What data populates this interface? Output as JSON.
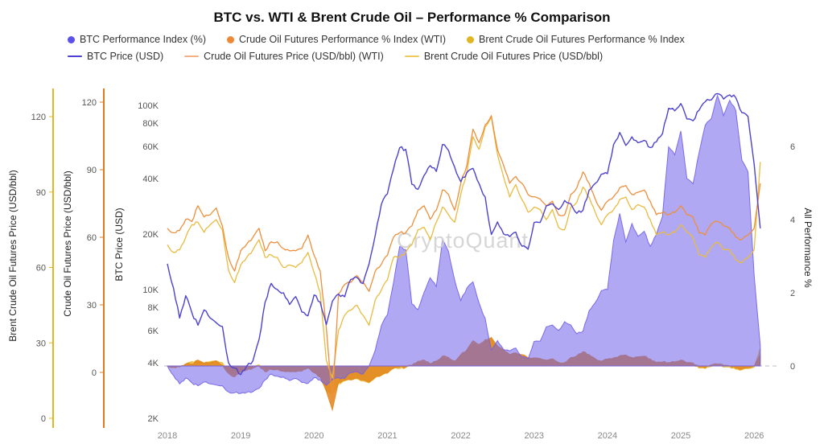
{
  "chart": {
    "title": "BTC vs. WTI & Brent Crude Oil – Performance % Comparison",
    "watermark": "CryptoQuant"
  },
  "legend": [
    {
      "label": "BTC Performance Index (%)",
      "marker": "dot",
      "color": "#5b51e8"
    },
    {
      "label": "Crude Oil Futures Performance % Index (WTI)",
      "marker": "dot",
      "color": "#ed8936"
    },
    {
      "label": "Brent Crude Oil Futures Performance % Index",
      "marker": "dot",
      "color": "#e0b625"
    },
    {
      "label": "BTC Price (USD)",
      "marker": "line",
      "color": "#4c42cf"
    },
    {
      "label": "Crude Oil Futures Price (USD/bbl) (WTI)",
      "marker": "line",
      "color": "#f5b183"
    },
    {
      "label": "Brent Crude Oil Futures Price (USD/bbl)",
      "marker": "line",
      "color": "#eec95c"
    }
  ],
  "axes": {
    "left_brent": {
      "title": "Brent Crude Oil Futures Price (USD/bbl)",
      "tick_values": [
        120,
        90,
        60,
        30,
        0
      ],
      "color": "#e6b422"
    },
    "left_wti": {
      "title": "Crude Oil Futures Price (USD/bbl)",
      "tick_values": [
        120,
        90,
        60,
        30,
        0
      ],
      "color": "#e07b1f"
    },
    "left_btc": {
      "title": "BTC Price (USD)",
      "tick_values": [
        100000,
        80000,
        60000,
        40000,
        20000,
        10000,
        8000,
        6000,
        4000,
        2000
      ],
      "tick_labels": [
        "100K",
        "80K",
        "60K",
        "40K",
        "20K",
        "10K",
        "8K",
        "6K",
        "4K",
        "2K"
      ]
    },
    "right_perf": {
      "title": "All Performance %",
      "tick_values": [
        6,
        4,
        2,
        0
      ]
    },
    "x_axis": {
      "tick_values": [
        2018,
        2019,
        2020,
        2021,
        2022,
        2023,
        2024,
        2025,
        2026
      ]
    }
  },
  "chart_data": {
    "type": "line",
    "title": "BTC vs. WTI & Brent Crude Oil – Performance % Comparison",
    "x_unit": "year (monthly samples, Jan 2018 – Feb 2026)",
    "x_start": 2018.0,
    "x_step_years": 0.083333,
    "grid": false,
    "legend_position": "top",
    "axis_ranges": {
      "btc_log": {
        "min": 2000,
        "max": 100000,
        "scale": "log",
        "unit": "USD"
      },
      "brent": {
        "min": 0,
        "max": 120,
        "scale": "linear",
        "unit": "USD/bbl"
      },
      "wti": {
        "min": -20,
        "max": 140,
        "scale": "linear",
        "unit": "USD/bbl"
      },
      "perf": {
        "min": -1.5,
        "max": 7.5,
        "scale": "linear",
        "unit": "%index"
      }
    },
    "series": [
      {
        "id": "btc-price-line",
        "name": "BTC Price (USD)",
        "axis": "btc_log",
        "kind": "line",
        "color": "#4c42cf",
        "values": [
          13800,
          10200,
          7000,
          9250,
          7500,
          6400,
          7750,
          7000,
          6600,
          6300,
          4000,
          3750,
          3450,
          3850,
          4100,
          5350,
          8550,
          10800,
          10000,
          9600,
          8300,
          9150,
          7550,
          7200,
          9350,
          8550,
          6450,
          8650,
          9450,
          9140,
          11350,
          11650,
          10780,
          13800,
          19700,
          29000,
          33100,
          45100,
          58800,
          57750,
          37300,
          35000,
          41600,
          47100,
          43800,
          61300,
          57000,
          46200,
          38500,
          43200,
          45500,
          37600,
          31800,
          19900,
          23300,
          20050,
          19400,
          20500,
          17200,
          16550,
          23100,
          23150,
          28500,
          29250,
          27200,
          30480,
          29230,
          25930,
          26960,
          34650,
          37700,
          42280,
          42580,
          61200,
          71300,
          60640,
          67500,
          62680,
          64600,
          58970,
          63330,
          70200,
          96400,
          93400,
          102400,
          84400,
          82550,
          94200,
          104600,
          107100,
          115800,
          108200,
          114000,
          110100,
          91400,
          87000,
          48000,
          21500
        ]
      },
      {
        "id": "wti-price-line",
        "name": "Crude Oil Futures Price (USD/bbl) (WTI)",
        "axis": "wti",
        "kind": "line",
        "color": "#ef8f3c",
        "values": [
          64,
          62,
          63,
          68,
          67,
          74,
          69,
          70,
          73,
          65,
          51,
          45,
          54,
          57,
          60,
          64,
          54,
          58,
          58,
          55,
          54,
          54,
          55,
          61,
          52,
          45,
          20,
          -13,
          35,
          39,
          40,
          43,
          40,
          36,
          45,
          48,
          52,
          60,
          62,
          62,
          65,
          72,
          74,
          68,
          72,
          81,
          79,
          72,
          84,
          92,
          108,
          102,
          110,
          114,
          99,
          92,
          84,
          87,
          84,
          79,
          78,
          77,
          74,
          76,
          70,
          70,
          79,
          82,
          89,
          84,
          77,
          72,
          76,
          78,
          82,
          83,
          79,
          80,
          81,
          76,
          70,
          71,
          70,
          71,
          74,
          70,
          69,
          62,
          61,
          66,
          67,
          65,
          64,
          60,
          59,
          61,
          64,
          84
        ]
      },
      {
        "id": "brent-price-line",
        "name": "Brent Crude Oil Futures Price (USD/bbl)",
        "axis": "brent",
        "kind": "line",
        "color": "#e9bb3f",
        "values": [
          69,
          66,
          67,
          72,
          77,
          78,
          74,
          77,
          79,
          75,
          59,
          54,
          61,
          64,
          67,
          71,
          64,
          65,
          64,
          60,
          61,
          60,
          62,
          66,
          58,
          50,
          23,
          16,
          35,
          41,
          43,
          45,
          41,
          37,
          47,
          51,
          55,
          64,
          64,
          66,
          69,
          75,
          76,
          71,
          78,
          84,
          81,
          78,
          89,
          98,
          112,
          107,
          116,
          120,
          105,
          96,
          88,
          93,
          87,
          82,
          84,
          83,
          79,
          83,
          76,
          75,
          84,
          86,
          92,
          88,
          82,
          77,
          81,
          83,
          87,
          88,
          83,
          85,
          84,
          79,
          73,
          74,
          73,
          74,
          77,
          74,
          72,
          65,
          64,
          68,
          70,
          67,
          67,
          63,
          62,
          64,
          67,
          102
        ]
      },
      {
        "id": "btc-performance-area",
        "name": "BTC Performance Index (%)",
        "axis": "perf",
        "kind": "area",
        "color": "#6f61ea",
        "values": [
          0.0,
          -0.26,
          -0.49,
          -0.33,
          -0.46,
          -0.54,
          -0.44,
          -0.49,
          -0.52,
          -0.54,
          -0.71,
          -0.73,
          -0.75,
          -0.72,
          -0.7,
          -0.61,
          -0.38,
          -0.22,
          -0.28,
          -0.3,
          -0.4,
          -0.34,
          -0.45,
          -0.48,
          -0.32,
          -0.38,
          -0.53,
          -0.37,
          -0.32,
          -0.34,
          -0.18,
          -0.16,
          -0.22,
          0.0,
          0.43,
          1.1,
          1.4,
          2.27,
          3.26,
          3.18,
          1.7,
          1.54,
          2.01,
          2.41,
          2.17,
          3.44,
          3.13,
          2.35,
          1.79,
          2.13,
          2.3,
          1.72,
          1.3,
          0.44,
          0.69,
          0.45,
          0.41,
          0.49,
          0.25,
          0.2,
          0.67,
          0.68,
          1.07,
          1.12,
          0.97,
          1.21,
          1.12,
          0.88,
          0.95,
          1.51,
          1.73,
          2.06,
          2.09,
          3.43,
          4.17,
          3.39,
          3.89,
          3.54,
          3.68,
          3.27,
          3.59,
          4.09,
          5.99,
          5.77,
          6.42,
          5.12,
          4.98,
          5.83,
          6.58,
          6.76,
          7.39,
          6.84,
          7.26,
          6.98,
          5.62,
          5.3,
          2.48,
          0.56
        ]
      },
      {
        "id": "wti-performance-area",
        "name": "Crude Oil Futures Performance % Index (WTI)",
        "axis": "perf",
        "kind": "area",
        "color": "#e2861c",
        "values": [
          0.0,
          -0.03,
          -0.02,
          0.06,
          0.05,
          0.16,
          0.08,
          0.09,
          0.14,
          0.02,
          -0.2,
          -0.3,
          -0.16,
          -0.11,
          -0.06,
          0.0,
          -0.16,
          -0.09,
          -0.09,
          -0.14,
          -0.16,
          -0.16,
          -0.14,
          -0.05,
          -0.19,
          -0.3,
          -0.69,
          -1.2,
          -0.45,
          -0.39,
          -0.38,
          -0.33,
          -0.38,
          -0.44,
          -0.3,
          -0.25,
          -0.19,
          -0.06,
          -0.03,
          -0.03,
          0.02,
          0.13,
          0.16,
          0.06,
          0.13,
          0.27,
          0.23,
          0.13,
          0.31,
          0.44,
          0.69,
          0.59,
          0.72,
          0.78,
          0.55,
          0.44,
          0.31,
          0.36,
          0.31,
          0.23,
          0.22,
          0.2,
          0.16,
          0.19,
          0.09,
          0.09,
          0.23,
          0.28,
          0.39,
          0.31,
          0.2,
          0.13,
          0.19,
          0.22,
          0.28,
          0.3,
          0.23,
          0.25,
          0.27,
          0.19,
          0.09,
          0.11,
          0.09,
          0.11,
          0.16,
          0.09,
          0.08,
          -0.03,
          -0.05,
          0.03,
          0.05,
          0.02,
          0.0,
          -0.06,
          -0.08,
          -0.05,
          0.0,
          0.31
        ]
      },
      {
        "id": "brent-performance-area",
        "name": "Brent Crude Oil Futures Performance % Index",
        "axis": "perf",
        "kind": "area",
        "color": "#e6b422",
        "values": [
          0.0,
          -0.04,
          -0.03,
          0.04,
          0.12,
          0.13,
          0.07,
          0.12,
          0.14,
          0.09,
          -0.14,
          -0.22,
          -0.12,
          -0.07,
          -0.03,
          0.03,
          -0.07,
          -0.06,
          -0.07,
          -0.13,
          -0.12,
          -0.13,
          -0.1,
          -0.04,
          -0.16,
          -0.28,
          -0.67,
          -0.77,
          -0.49,
          -0.41,
          -0.38,
          -0.35,
          -0.41,
          -0.46,
          -0.32,
          -0.26,
          -0.2,
          -0.07,
          -0.07,
          -0.04,
          0.0,
          0.09,
          0.1,
          0.03,
          0.13,
          0.22,
          0.17,
          0.13,
          0.29,
          0.42,
          0.62,
          0.55,
          0.68,
          0.74,
          0.52,
          0.39,
          0.28,
          0.35,
          0.26,
          0.19,
          0.22,
          0.2,
          0.14,
          0.2,
          0.1,
          0.09,
          0.22,
          0.25,
          0.33,
          0.28,
          0.19,
          0.12,
          0.17,
          0.2,
          0.26,
          0.28,
          0.2,
          0.23,
          0.22,
          0.14,
          0.06,
          0.07,
          0.06,
          0.07,
          0.12,
          0.07,
          0.04,
          -0.06,
          -0.07,
          -0.01,
          0.01,
          -0.03,
          -0.03,
          -0.09,
          -0.1,
          -0.07,
          -0.03,
          0.48
        ]
      }
    ]
  }
}
